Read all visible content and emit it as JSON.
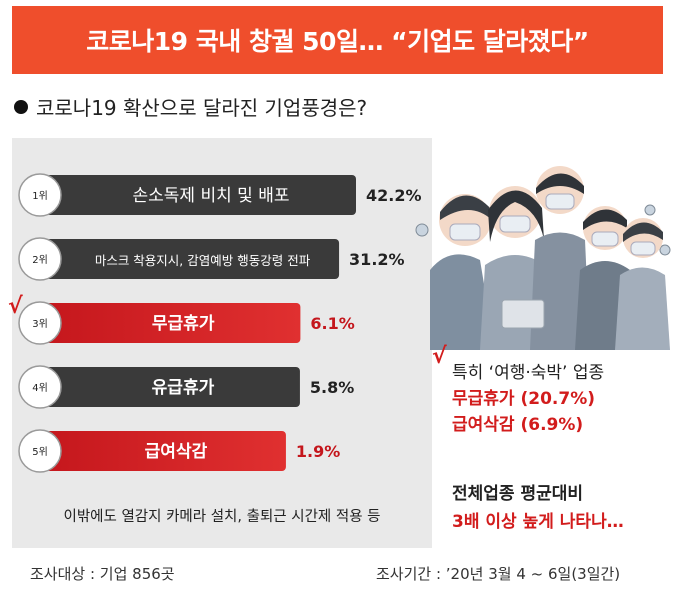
{
  "header": {
    "title": "코로나19 국내 창궐 50일… “기업도 달라졌다”"
  },
  "subtitle": "코로나19 확산으로 달라진 기업풍경은?",
  "chart_data": {
    "type": "bar",
    "orientation": "horizontal",
    "categories": [
      "손소독제 비치 및 배포",
      "마스크 착용지시, 감염예방 행동강령 전파",
      "무급휴가",
      "유급휴가",
      "급여삭감"
    ],
    "ranks": [
      "1위",
      "2위",
      "3위",
      "4위",
      "5위"
    ],
    "values": [
      42.2,
      31.2,
      6.1,
      5.8,
      1.9
    ],
    "value_labels": [
      "42.2%",
      "31.2%",
      "6.1%",
      "5.8%",
      "1.9%"
    ],
    "highlighted": [
      false,
      false,
      true,
      false,
      true
    ],
    "unit": "%",
    "colors": {
      "dark": "#3a3a3a",
      "red": "#c4161c",
      "red_light": "#e03030"
    }
  },
  "extra_note": "이밖에도 열감지 카메라 설치, 출퇴근 시간제 적용 등",
  "callout": {
    "check_mark": "√",
    "heading": "특히 ‘여행·숙박’ 업종",
    "line1": "무급휴가 (20.7%)",
    "line2": "급여삭감 (6.9%)"
  },
  "callout2": {
    "line1": "전체업종 평균대비",
    "line2": "3배 이상 높게 나타나…"
  },
  "chart_check_mark": "√",
  "footer": {
    "survey_target": "조사대상 : 기업 856곳",
    "survey_period": "조사기간 : ’20년 3월 4 ~ 6일(3일간)"
  }
}
